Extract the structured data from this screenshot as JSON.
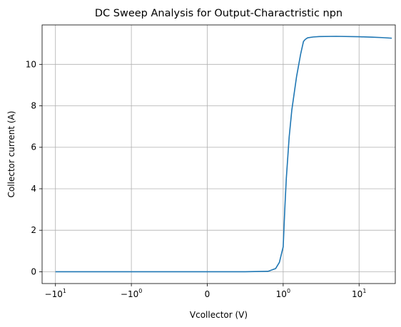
{
  "chart_data": {
    "type": "line",
    "title": "DC Sweep Analysis for Output-Charactristic npn",
    "xlabel": "Vcollector (V)",
    "ylabel": "Collector current (A)",
    "xscale": "symlog",
    "xlim": [
      -15,
      30
    ],
    "ylim": [
      -0.57,
      11.9
    ],
    "grid": true,
    "x_ticks": [
      {
        "value": -10,
        "base": "−10",
        "exp": "1"
      },
      {
        "value": -1,
        "base": "−10",
        "exp": "0"
      },
      {
        "value": 0,
        "base": "0",
        "exp": ""
      },
      {
        "value": 1,
        "base": "10",
        "exp": "0"
      },
      {
        "value": 10,
        "base": "10",
        "exp": "1"
      }
    ],
    "y_ticks": [
      {
        "value": 0,
        "label": "0"
      },
      {
        "value": 2,
        "label": "2"
      },
      {
        "value": 4,
        "label": "4"
      },
      {
        "value": 6,
        "label": "6"
      },
      {
        "value": 8,
        "label": "8"
      },
      {
        "value": 10,
        "label": "10"
      }
    ],
    "series": [
      {
        "color": "#1f77b4",
        "x": [
          -10,
          -1,
          0,
          0.5,
          0.8,
          0.9,
          0.95,
          1.0,
          1.05,
          1.1,
          1.2,
          1.3,
          1.5,
          1.7,
          1.85,
          1.95,
          2.1,
          2.5,
          3,
          5,
          10,
          15,
          20,
          27
        ],
        "y": [
          0,
          0,
          0,
          0,
          0.02,
          0.15,
          0.45,
          1.2,
          3.0,
          4.5,
          6.5,
          7.8,
          9.4,
          10.5,
          11.1,
          11.2,
          11.28,
          11.32,
          11.34,
          11.35,
          11.33,
          11.31,
          11.29,
          11.26
        ]
      }
    ]
  }
}
